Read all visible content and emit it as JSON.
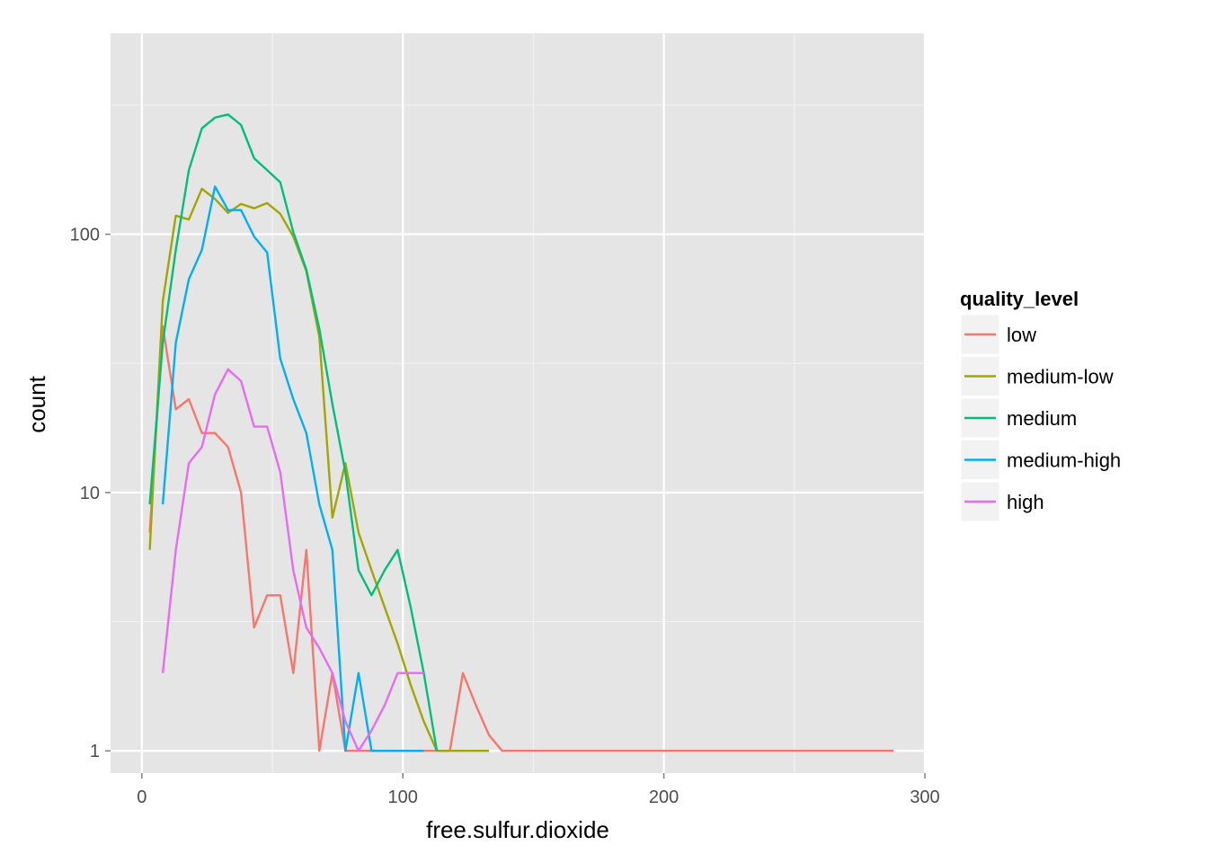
{
  "chart_data": {
    "type": "line",
    "xlabel": "free.sulfur.dioxide",
    "ylabel": "count",
    "y_scale": "log10",
    "xlim": [
      -12,
      300
    ],
    "ylim": [
      0.82,
      600
    ],
    "x_ticks": [
      0,
      100,
      200,
      300
    ],
    "x_tick_labels": [
      "0",
      "100",
      "200",
      "300"
    ],
    "y_ticks": [
      1,
      10,
      100
    ],
    "y_tick_labels": [
      "1",
      "10",
      "100"
    ],
    "grid": true,
    "legend": {
      "title": "quality_level",
      "position": "right"
    },
    "series": [
      {
        "name": "low",
        "color": "#F8766D",
        "points": [
          [
            3,
            7
          ],
          [
            8,
            44
          ],
          [
            13,
            21
          ],
          [
            18,
            23
          ],
          [
            23,
            17
          ],
          [
            28,
            17
          ],
          [
            33,
            15
          ],
          [
            38,
            10
          ],
          [
            43,
            3
          ],
          [
            48,
            4
          ],
          [
            53,
            4
          ],
          [
            58,
            2
          ],
          [
            63,
            6
          ],
          [
            68,
            1
          ],
          [
            73,
            2
          ],
          [
            78,
            1
          ],
          [
            83,
            1
          ],
          [
            88,
            1
          ],
          [
            93,
            1
          ],
          [
            98,
            1
          ],
          [
            103,
            1
          ],
          [
            108,
            1
          ],
          [
            113,
            1
          ],
          [
            118,
            1
          ],
          [
            123,
            2
          ],
          [
            128,
            1.5
          ],
          [
            133,
            1.15
          ],
          [
            138,
            1
          ],
          [
            288,
            1
          ]
        ]
      },
      {
        "name": "medium-low",
        "color": "#A3A500",
        "points": [
          [
            3,
            6
          ],
          [
            8,
            55
          ],
          [
            13,
            118
          ],
          [
            18,
            114
          ],
          [
            23,
            150
          ],
          [
            28,
            137
          ],
          [
            33,
            121
          ],
          [
            38,
            131
          ],
          [
            43,
            126
          ],
          [
            48,
            132
          ],
          [
            53,
            120
          ],
          [
            58,
            98
          ],
          [
            63,
            72
          ],
          [
            68,
            40
          ],
          [
            73,
            8
          ],
          [
            78,
            13
          ],
          [
            83,
            7
          ],
          [
            88,
            5
          ],
          [
            93,
            3.6
          ],
          [
            98,
            2.6
          ],
          [
            103,
            1.8
          ],
          [
            108,
            1.3
          ],
          [
            113,
            1
          ],
          [
            118,
            1
          ],
          [
            123,
            1
          ],
          [
            128,
            1
          ],
          [
            133,
            1
          ]
        ]
      },
      {
        "name": "medium",
        "color": "#00BF7D",
        "points": [
          [
            3,
            9
          ],
          [
            8,
            38
          ],
          [
            13,
            87
          ],
          [
            18,
            177
          ],
          [
            23,
            257
          ],
          [
            28,
            283
          ],
          [
            33,
            291
          ],
          [
            38,
            265
          ],
          [
            43,
            197
          ],
          [
            48,
            177
          ],
          [
            53,
            159
          ],
          [
            58,
            102
          ],
          [
            63,
            73
          ],
          [
            68,
            43
          ],
          [
            73,
            22
          ],
          [
            78,
            12
          ],
          [
            83,
            5
          ],
          [
            88,
            4
          ],
          [
            93,
            5
          ],
          [
            98,
            6
          ],
          [
            103,
            3.6
          ],
          [
            108,
            2
          ],
          [
            113,
            1
          ]
        ]
      },
      {
        "name": "medium-high",
        "color": "#00B0F6",
        "points": [
          [
            8,
            9
          ],
          [
            13,
            38
          ],
          [
            18,
            67
          ],
          [
            23,
            87
          ],
          [
            28,
            153
          ],
          [
            33,
            124
          ],
          [
            38,
            124
          ],
          [
            43,
            98
          ],
          [
            48,
            85
          ],
          [
            53,
            33
          ],
          [
            58,
            23
          ],
          [
            63,
            17
          ],
          [
            68,
            9
          ],
          [
            73,
            6
          ],
          [
            78,
            1
          ],
          [
            83,
            2
          ],
          [
            88,
            1
          ],
          [
            93,
            1
          ],
          [
            98,
            1
          ],
          [
            103,
            1
          ],
          [
            108,
            1
          ]
        ]
      },
      {
        "name": "high",
        "color": "#E76BF3",
        "points": [
          [
            8,
            2
          ],
          [
            13,
            6
          ],
          [
            18,
            13
          ],
          [
            23,
            15
          ],
          [
            28,
            24
          ],
          [
            33,
            30
          ],
          [
            38,
            27
          ],
          [
            43,
            18
          ],
          [
            48,
            18
          ],
          [
            53,
            12
          ],
          [
            58,
            5
          ],
          [
            63,
            3
          ],
          [
            68,
            2.5
          ],
          [
            73,
            2
          ],
          [
            78,
            1.3
          ],
          [
            83,
            1
          ],
          [
            88,
            1.2
          ],
          [
            93,
            1.5
          ],
          [
            98,
            2
          ],
          [
            103,
            2
          ],
          [
            108,
            2
          ]
        ]
      }
    ]
  }
}
